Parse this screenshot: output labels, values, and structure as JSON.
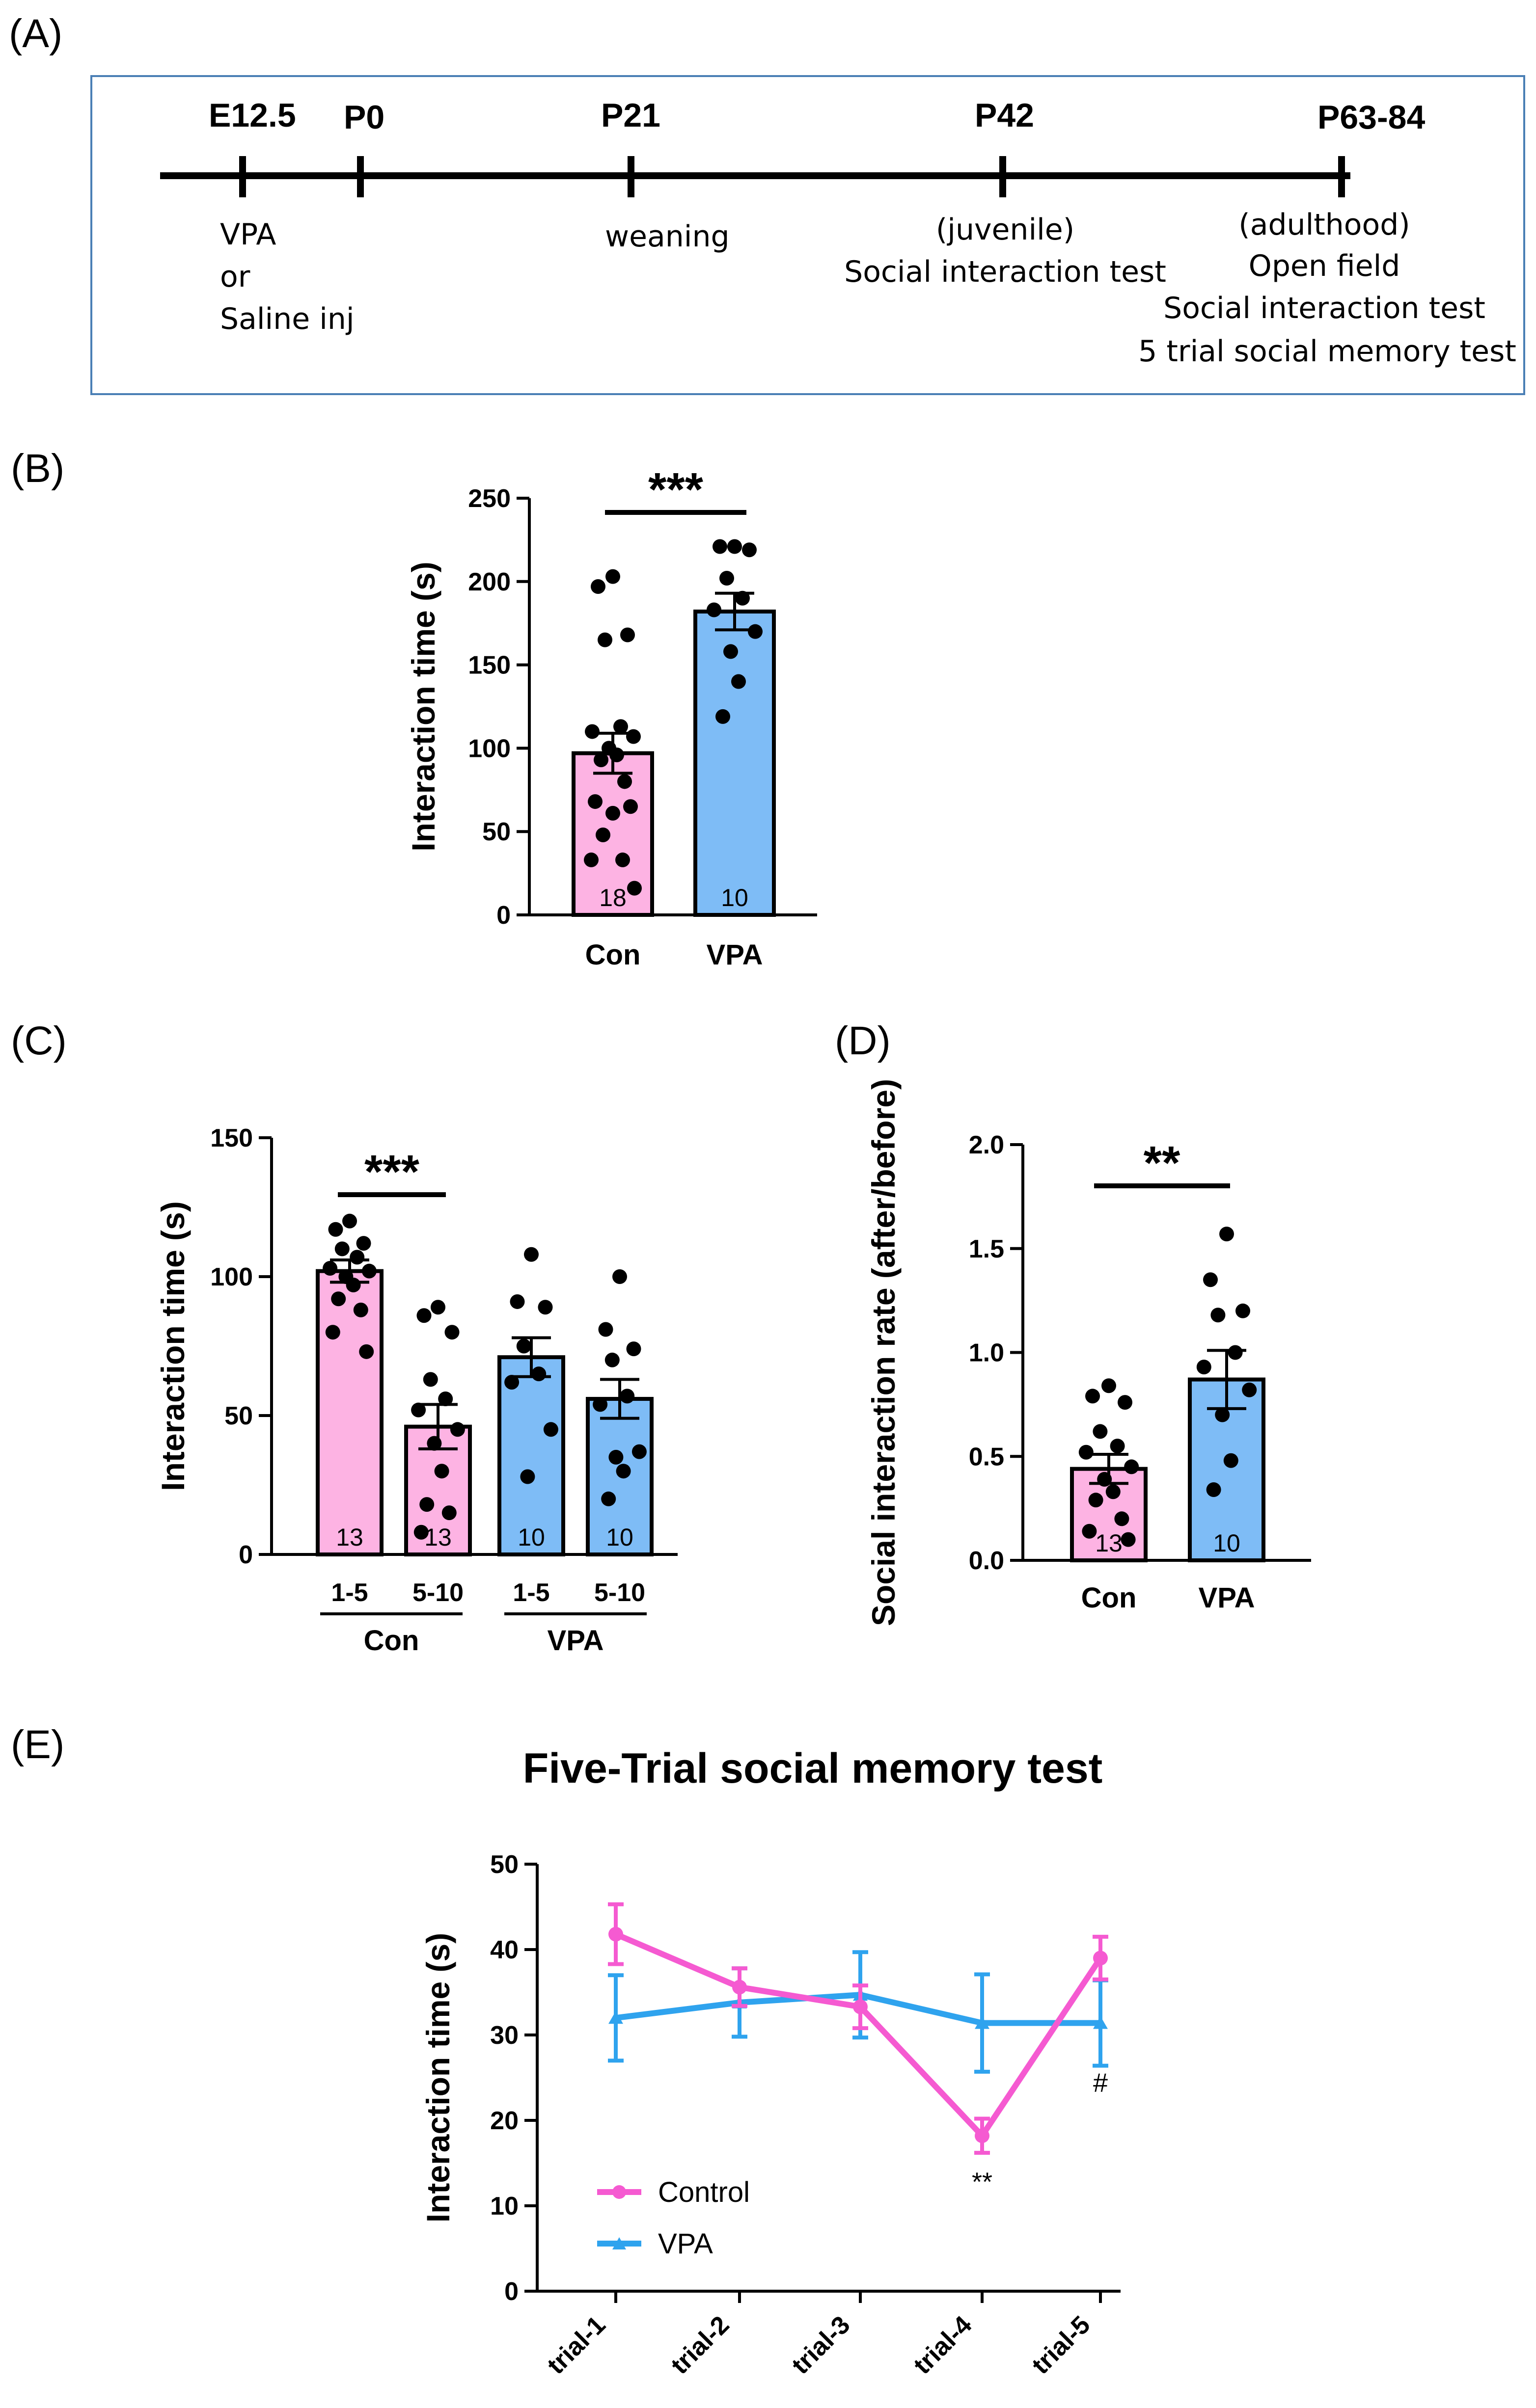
{
  "panels": {
    "A": "(A)",
    "B": "(B)",
    "C": "(C)",
    "D": "(D)",
    "E": "(E)"
  },
  "timeline": {
    "points": [
      "E12.5",
      "P0",
      "P21",
      "P42",
      "P63-84"
    ],
    "e125_notes": [
      "VPA",
      "or",
      "Saline inj"
    ],
    "p21_note": "weaning",
    "p42_notes": [
      "(juvenile)",
      "Social interaction test"
    ],
    "p63_notes": [
      "(adulthood)",
      "Open field",
      "Social interaction test",
      "5 trial social memory test"
    ]
  },
  "colors": {
    "pink": "#fdb3e3",
    "blue": "#7ebcf6",
    "pink_line": "#f55ad1",
    "blue_line": "#2fa3ee",
    "border": "#4a7fb5"
  },
  "chart_data": [
    {
      "panel": "B",
      "type": "bar",
      "ylabel": "Interaction time (s)",
      "ylim": [
        0,
        250
      ],
      "yticks": [
        0,
        50,
        100,
        150,
        200,
        250
      ],
      "categories": [
        "Con",
        "VPA"
      ],
      "values": [
        97,
        182
      ],
      "sem": [
        12,
        11
      ],
      "n_labels": [
        "18",
        "10"
      ],
      "points": [
        [
          203,
          197,
          168,
          165,
          113,
          110,
          107,
          100,
          96,
          93,
          80,
          68,
          65,
          61,
          48,
          33,
          33,
          16
        ],
        [
          221,
          221,
          219,
          202,
          190,
          183,
          170,
          158,
          140,
          119
        ]
      ],
      "significance": "***"
    },
    {
      "panel": "C",
      "type": "bar",
      "ylabel": "Interaction time (s)",
      "ylim": [
        0,
        150
      ],
      "yticks": [
        0,
        50,
        100,
        150
      ],
      "categories": [
        "1-5",
        "5-10",
        "1-5",
        "5-10"
      ],
      "groups": [
        "Con",
        "VPA"
      ],
      "values": [
        102,
        46,
        71,
        56
      ],
      "sem": [
        4,
        8,
        7,
        7
      ],
      "n_labels": [
        "13",
        "13",
        "10",
        "10"
      ],
      "points": [
        [
          120,
          117,
          112,
          110,
          107,
          103,
          102,
          100,
          97,
          92,
          88,
          80,
          73
        ],
        [
          89,
          86,
          80,
          63,
          56,
          52,
          45,
          40,
          30,
          18,
          15,
          8
        ],
        [
          108,
          91,
          89,
          75,
          65,
          62,
          45,
          28
        ],
        [
          100,
          81,
          74,
          70,
          57,
          54,
          37,
          35,
          30,
          20
        ]
      ],
      "significance": "***"
    },
    {
      "panel": "D",
      "type": "bar",
      "ylabel": "Social interaction rate (after/before)",
      "ylim": [
        0,
        2.0
      ],
      "yticks": [
        "0.0",
        "0.5",
        "1.0",
        "1.5",
        "2.0"
      ],
      "categories": [
        "Con",
        "VPA"
      ],
      "values": [
        0.44,
        0.87
      ],
      "sem": [
        0.07,
        0.14
      ],
      "n_labels": [
        "13",
        "10"
      ],
      "points": [
        [
          0.84,
          0.79,
          0.76,
          0.62,
          0.55,
          0.52,
          0.45,
          0.39,
          0.33,
          0.29,
          0.2,
          0.14,
          0.1
        ],
        [
          1.57,
          1.35,
          1.2,
          1.18,
          1.0,
          0.93,
          0.82,
          0.7,
          0.48,
          0.34
        ]
      ],
      "significance": "**"
    },
    {
      "panel": "E",
      "type": "line",
      "title": "Five-Trial social memory test",
      "ylabel": "Interaction time (s)",
      "ylim": [
        0,
        50
      ],
      "yticks": [
        0,
        10,
        20,
        30,
        40,
        50
      ],
      "x": [
        "trial-1",
        "trial-2",
        "trial-3",
        "trial-4",
        "trial-5"
      ],
      "series": [
        {
          "name": "Control",
          "values": [
            41.8,
            35.6,
            33.3,
            18.2,
            39.0
          ],
          "err": [
            3.5,
            2.2,
            2.5,
            2.0,
            2.5
          ]
        },
        {
          "name": "VPA",
          "values": [
            32.0,
            33.8,
            34.7,
            31.4,
            31.4
          ],
          "err": [
            5.0,
            4.0,
            5.0,
            5.7,
            5.0
          ]
        }
      ],
      "annotations": [
        {
          "x": "trial-4",
          "text": "**"
        },
        {
          "x": "trial-5",
          "text": "#"
        }
      ]
    }
  ]
}
